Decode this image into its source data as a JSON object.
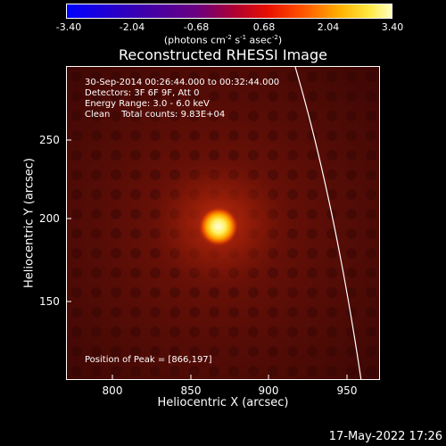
{
  "colorbar": {
    "tick_labels": [
      "-3.40",
      "-2.04",
      "-0.68",
      "0.68",
      "2.04",
      "3.40"
    ],
    "units_prefix": "(photons cm",
    "units_exp1": "-2",
    "units_mid1": " s",
    "units_exp2": "-1",
    "units_mid2": " asec",
    "units_exp3": "-2",
    "units_suffix": ")",
    "colormap": "red-temperature",
    "range": [
      -3.4,
      3.4
    ]
  },
  "plot": {
    "title": "Reconstructed RHESSI Image",
    "info": [
      "30-Sep-2014 00:26:44.000 to 00:32:44.000",
      "Detectors: 3F 6F 9F, Att 0",
      "Energy Range: 3.0 - 6.0 keV",
      "Clean    Total counts: 9.83E+04"
    ],
    "peak_label": "Position of Peak = [866,197]",
    "peak": [
      866,
      197
    ],
    "xlabel": "Heliocentric X (arcsec)",
    "ylabel": "Heliocentric Y (arcsec)",
    "xticks": [
      "800",
      "850",
      "900",
      "950"
    ],
    "yticks": [
      "250",
      "200",
      "150"
    ],
    "limb_color": "#ffffff"
  },
  "footer": {
    "timestamp": "17-May-2022 17:26"
  }
}
